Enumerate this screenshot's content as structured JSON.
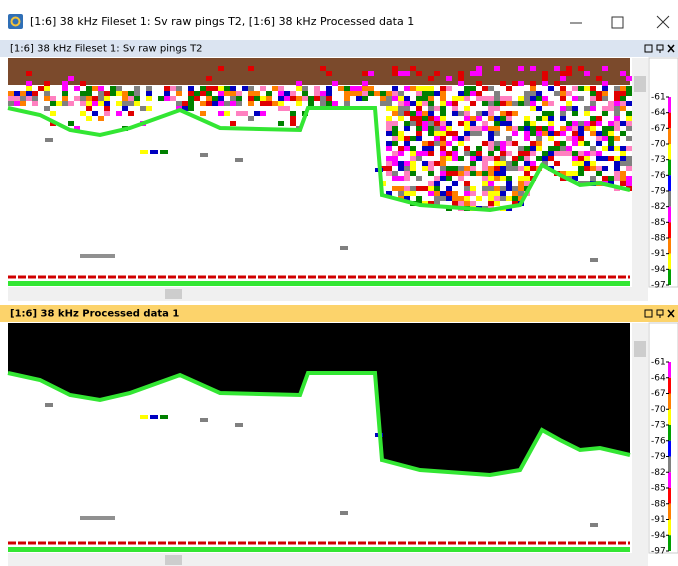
{
  "window": {
    "title": "[1:6] 38 kHz Fileset 1: Sv raw pings T2, [1:6] 38 kHz Processed data 1"
  },
  "panes": [
    {
      "title": "[1:6] 38 kHz Fileset 1: Sv raw pings T2",
      "scale_labels": [
        "-61",
        "-64",
        "-67",
        "-70",
        "-73",
        "-76",
        "-79",
        "-82",
        "-85",
        "-88",
        "-91",
        "-94",
        "-97"
      ]
    },
    {
      "title": "[1:6] 38 kHz Processed data 1",
      "scale_labels": [
        "-61",
        "-64",
        "-67",
        "-70",
        "-73",
        "-76",
        "-79",
        "-82",
        "-85",
        "-88",
        "-91",
        "-94",
        "-97"
      ]
    }
  ]
}
